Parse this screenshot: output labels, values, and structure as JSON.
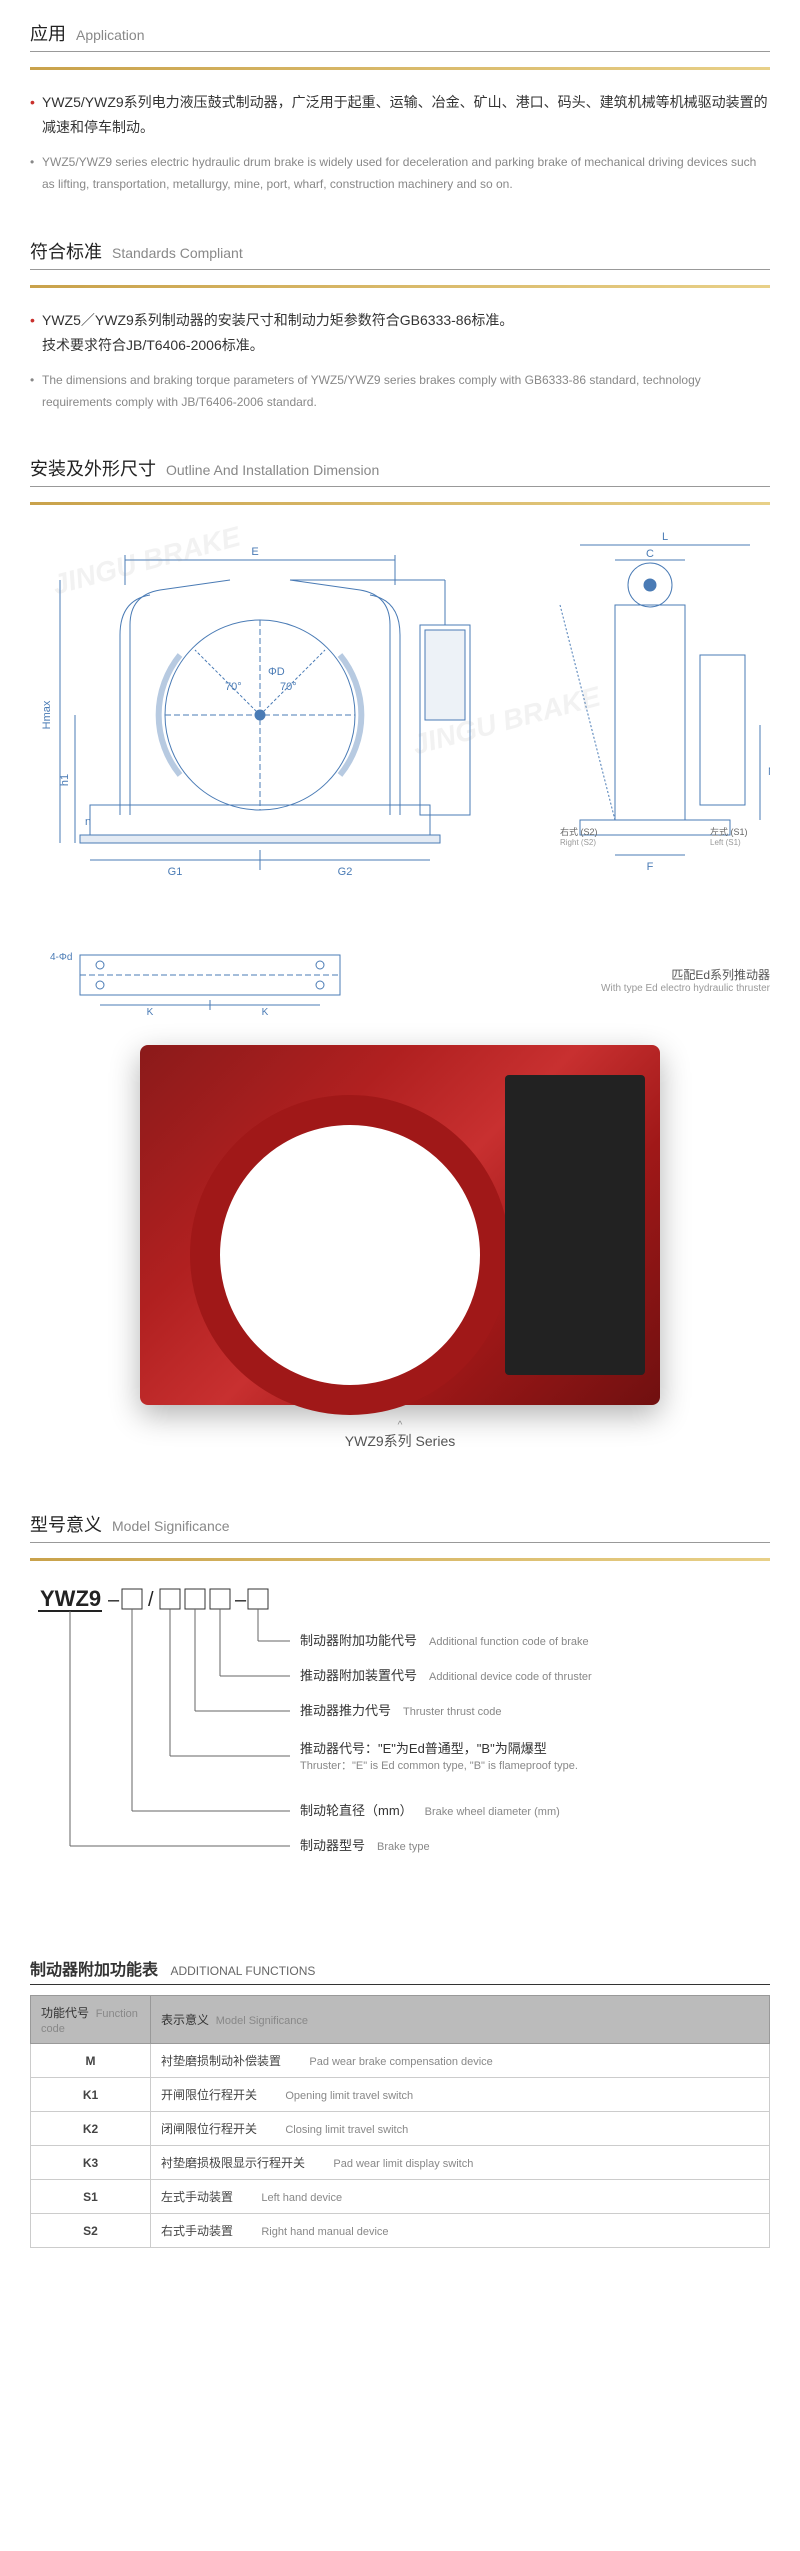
{
  "application": {
    "title_cn": "应用",
    "title_en": "Application",
    "body_cn": "YWZ5/YWZ9系列电力液压鼓式制动器，广泛用于起重、运输、冶金、矿山、港口、码头、建筑机械等机械驱动装置的减速和停车制动。",
    "body_en": "YWZ5/YWZ9 series electric hydraulic drum brake is widely used for deceleration and parking brake of mechanical driving devices such as lifting, transportation, metallurgy, mine, port, wharf, construction machinery and so on."
  },
  "standards": {
    "title_cn": "符合标准",
    "title_en": "Standards Compliant",
    "body_cn_1": "YWZ5／YWZ9系列制动器的安装尺寸和制动力矩参数符合GB6333-86标准。",
    "body_cn_2": "技术要求符合JB/T6406-2006标准。",
    "body_en": "The dimensions and braking torque parameters of YWZ5/YWZ9 series brakes comply with GB6333-86 standard, technology requirements comply with JB/T6406-2006 standard."
  },
  "outline": {
    "title_cn": "安装及外形尺寸",
    "title_en": "Outline And Installation Dimension",
    "dim_labels": {
      "E": "E",
      "C": "C",
      "L": "L",
      "D": "ΦD",
      "Hmax": "Hmax",
      "h1": "h1",
      "n": "n",
      "G1": "G1",
      "G2": "G2",
      "F": "F",
      "M": "M",
      "angle1": "70°",
      "angle2": "70°",
      "right_cn": "右式 (S2)",
      "right_en": "Right (S2)",
      "left_cn": "左式 (S1)",
      "left_en": "Left (S1)",
      "holes": "4-Φd",
      "K": "K",
      "note_cn": "匹配Ed系列推动器",
      "note_en": "With type Ed electro hydraulic thruster"
    },
    "colors": {
      "line": "#4a7bb5",
      "text": "#4a7bb5"
    }
  },
  "product": {
    "caption": "YWZ9系列 Series"
  },
  "model": {
    "title_cn": "型号意义",
    "title_en": "Model Significance",
    "prefix": "YWZ9",
    "rows": [
      {
        "cn": "制动器附加功能代号",
        "en": "Additional function code of brake"
      },
      {
        "cn": "推动器附加装置代号",
        "en": "Additional device code of thruster"
      },
      {
        "cn": "推动器推力代号",
        "en": "Thruster thrust code"
      },
      {
        "cn": "推动器代号：\"E\"为Ed普通型，\"B\"为隔爆型",
        "en": "Thruster：\"E\" is Ed common type, \"B\" is flameproof type."
      },
      {
        "cn": "制动轮直径（mm）",
        "en": "Brake wheel diameter (mm)"
      },
      {
        "cn": "制动器型号",
        "en": "Brake type"
      }
    ]
  },
  "functions": {
    "title_cn": "制动器附加功能表",
    "title_en": "ADDITIONAL FUNCTIONS",
    "headers": {
      "code_cn": "功能代号",
      "code_en": "Function code",
      "sig_cn": "表示意义",
      "sig_en": "Model Significance"
    },
    "rows": [
      {
        "code": "M",
        "cn": "衬垫磨损制动补偿装置",
        "en": "Pad wear brake compensation device"
      },
      {
        "code": "K1",
        "cn": "开闸限位行程开关",
        "en": "Opening limit travel switch"
      },
      {
        "code": "K2",
        "cn": "闭闸限位行程开关",
        "en": "Closing limit travel switch"
      },
      {
        "code": "K3",
        "cn": "衬垫磨损极限显示行程开关",
        "en": "Pad wear limit display switch"
      },
      {
        "code": "S1",
        "cn": "左式手动装置",
        "en": "Left hand device"
      },
      {
        "code": "S2",
        "cn": "右式手动装置",
        "en": "Right hand manual device"
      }
    ]
  },
  "watermark": "JINGU BRAKE"
}
